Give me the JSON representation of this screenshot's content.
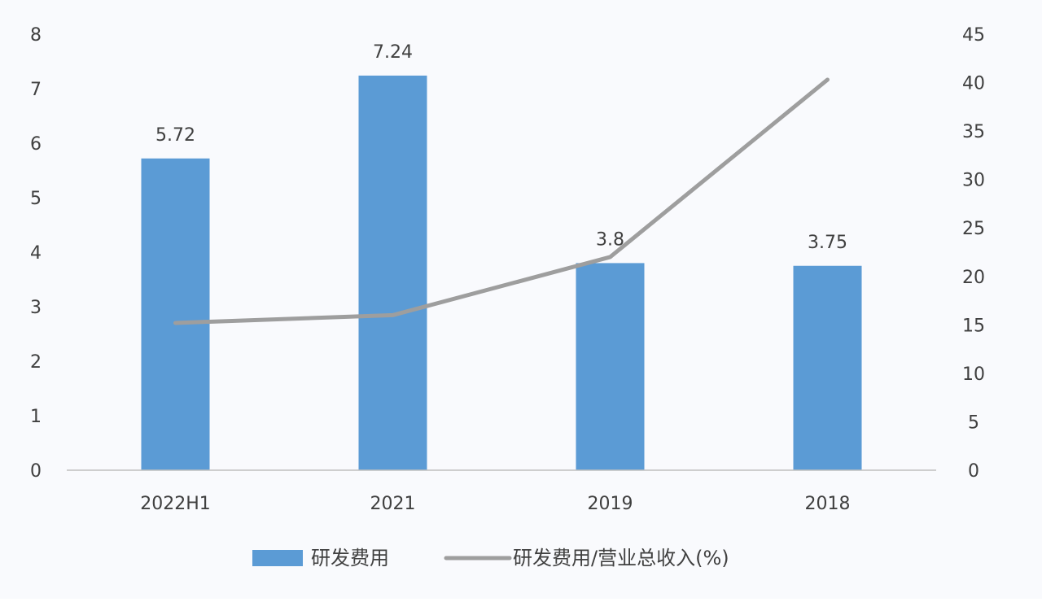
{
  "chart_data": {
    "type": "bar",
    "categories": [
      "2022H1",
      "2021",
      "2019",
      "2018"
    ],
    "series": [
      {
        "name": "研发费用",
        "type": "bar",
        "axis": "left",
        "values": [
          5.72,
          7.24,
          3.8,
          3.75
        ],
        "data_labels": [
          "5.72",
          "7.24",
          "3.8",
          "3.75"
        ]
      },
      {
        "name": "研发费用/营业总收入(%)",
        "type": "line",
        "axis": "right",
        "values": [
          15.2,
          16.0,
          22.0,
          40.3
        ]
      }
    ],
    "y_left": {
      "ylim": [
        0,
        8
      ],
      "ticks": [
        "0",
        "1",
        "2",
        "3",
        "4",
        "5",
        "6",
        "7",
        "8"
      ]
    },
    "y_right": {
      "ylim": [
        0,
        45
      ],
      "ticks": [
        "0",
        "5",
        "10",
        "15",
        "20",
        "25",
        "30",
        "35",
        "40",
        "45"
      ]
    },
    "grid": false,
    "legend_position": "bottom",
    "colors": {
      "bar": "#5b9bd5",
      "line": "#9e9e9e",
      "axis": "#bfbfbf",
      "text": "#404040"
    }
  }
}
